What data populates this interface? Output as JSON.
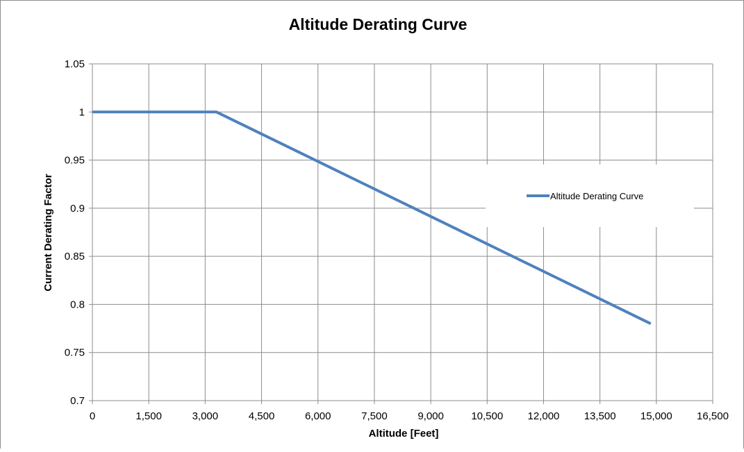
{
  "chart_data": {
    "type": "line",
    "title": "Altitude Derating Curve",
    "xlabel": "Altitude [Feet]",
    "ylabel": "Current Derating Factor",
    "xlim": [
      0,
      16500
    ],
    "ylim": [
      0.7,
      1.05
    ],
    "x_ticks": [
      0,
      1500,
      3000,
      4500,
      6000,
      7500,
      9000,
      10500,
      12000,
      13500,
      15000,
      16500
    ],
    "x_tick_labels": [
      "0",
      "1,500",
      "3,000",
      "4,500",
      "6,000",
      "7,500",
      "9,000",
      "10,500",
      "12,000",
      "13,500",
      "15,000",
      "16,500"
    ],
    "y_ticks": [
      0.7,
      0.75,
      0.8,
      0.85,
      0.9,
      0.95,
      1,
      1.05
    ],
    "y_tick_labels": [
      "0.7",
      "0.75",
      "0.8",
      "0.85",
      "0.9",
      "0.95",
      "1",
      "1.05"
    ],
    "grid": true,
    "legend_position": "right",
    "series": [
      {
        "name": "Altitude Derating Curve",
        "color": "#4f81bd",
        "x": [
          0,
          3300,
          14850
        ],
        "y": [
          1.0,
          1.0,
          0.78
        ]
      }
    ]
  }
}
